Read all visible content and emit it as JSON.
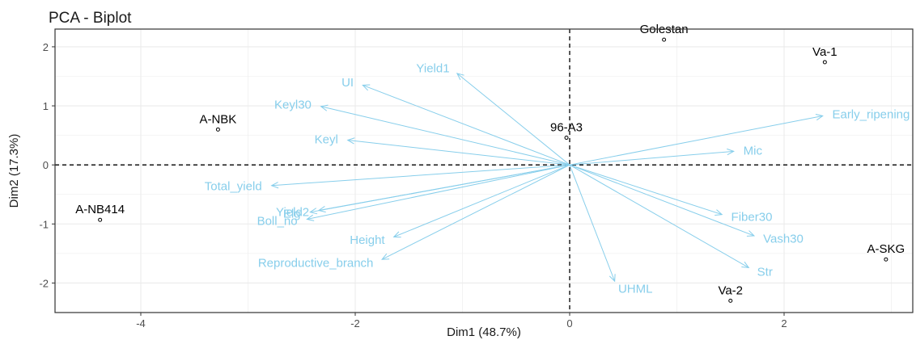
{
  "chart_data": {
    "type": "scatter",
    "title": "PCA - Biplot",
    "xlabel": "Dim1 (48.7%)",
    "ylabel": "Dim2 (17.3%)",
    "xlim": [
      -4.8,
      3.2
    ],
    "ylim": [
      -2.5,
      2.3
    ],
    "xticks": [
      -4,
      -2,
      0,
      2
    ],
    "yticks": [
      -2,
      -1,
      0,
      1,
      2
    ],
    "grid": true,
    "colors": {
      "individuals": "#000000",
      "variables": "#87CEEB",
      "grid": "#ebebeb",
      "border": "#333333"
    },
    "individuals": [
      {
        "label": "Golestan",
        "x": 0.88,
        "y": 2.12
      },
      {
        "label": "Va-1",
        "x": 2.38,
        "y": 1.74
      },
      {
        "label": "A-NBK",
        "x": -3.28,
        "y": 0.6
      },
      {
        "label": "96-A3",
        "x": -0.03,
        "y": 0.46
      },
      {
        "label": "A-NB414",
        "x": -4.38,
        "y": -0.93
      },
      {
        "label": "A-SKG",
        "x": 2.95,
        "y": -1.6
      },
      {
        "label": "Va-2",
        "x": 1.5,
        "y": -2.3
      }
    ],
    "variables": [
      {
        "label": "Yield1",
        "x": -1.05,
        "y": 1.55
      },
      {
        "label": "UI",
        "x": -1.93,
        "y": 1.35
      },
      {
        "label": "Keyl30",
        "x": -2.32,
        "y": 0.99
      },
      {
        "label": "Keyl",
        "x": -2.07,
        "y": 0.42
      },
      {
        "label": "Total_yield",
        "x": -2.78,
        "y": -0.35
      },
      {
        "label": "Elg",
        "x": -2.42,
        "y": -0.8
      },
      {
        "label": "Yield2",
        "x": -2.34,
        "y": -0.77
      },
      {
        "label": "Boll_no",
        "x": -2.45,
        "y": -0.92
      },
      {
        "label": "Height",
        "x": -1.64,
        "y": -1.22
      },
      {
        "label": "Reproductive_branch",
        "x": -1.75,
        "y": -1.6
      },
      {
        "label": "UHML",
        "x": 0.42,
        "y": -1.97
      },
      {
        "label": "Str",
        "x": 1.67,
        "y": -1.74
      },
      {
        "label": "Vash30",
        "x": 1.72,
        "y": -1.2
      },
      {
        "label": "Fiber30",
        "x": 1.42,
        "y": -0.84
      },
      {
        "label": "Mic",
        "x": 1.53,
        "y": 0.23
      },
      {
        "label": "Early_ripening",
        "x": 2.36,
        "y": 0.83
      }
    ]
  }
}
